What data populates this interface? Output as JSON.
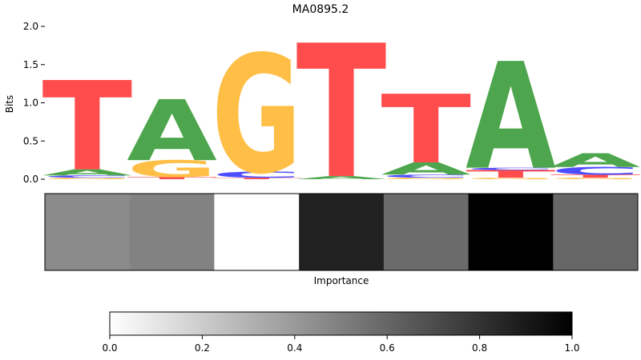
{
  "chart_data": [
    {
      "type": "sequence-logo",
      "title": "MA0895.2",
      "ylabel": "Bits",
      "ylim": [
        0,
        2.0
      ],
      "yticks": [
        "0.0",
        "0.5",
        "1.0",
        "1.5",
        "2.0"
      ],
      "colors": {
        "A": "#4da64d",
        "C": "#4d4dff",
        "G": "#ffbf47",
        "T": "#ff4d4d"
      },
      "positions": [
        {
          "stack": [
            {
              "base": "G",
              "height": 0.02
            },
            {
              "base": "C",
              "height": 0.03
            },
            {
              "base": "A",
              "height": 0.08
            },
            {
              "base": "T",
              "height": 1.17
            }
          ]
        },
        {
          "stack": [
            {
              "base": "T",
              "height": 0.03
            },
            {
              "base": "G",
              "height": 0.22
            },
            {
              "base": "A",
              "height": 0.8
            }
          ]
        },
        {
          "stack": [
            {
              "base": "T",
              "height": 0.02
            },
            {
              "base": "C",
              "height": 0.08
            },
            {
              "base": "G",
              "height": 1.55
            }
          ]
        },
        {
          "stack": [
            {
              "base": "A",
              "height": 0.04
            },
            {
              "base": "T",
              "height": 1.75
            }
          ]
        },
        {
          "stack": [
            {
              "base": "G",
              "height": 0.02
            },
            {
              "base": "C",
              "height": 0.04
            },
            {
              "base": "A",
              "height": 0.16
            },
            {
              "base": "T",
              "height": 0.9
            }
          ]
        },
        {
          "stack": [
            {
              "base": "G",
              "height": 0.02
            },
            {
              "base": "T",
              "height": 0.1
            },
            {
              "base": "C",
              "height": 0.03
            },
            {
              "base": "A",
              "height": 1.4
            }
          ]
        },
        {
          "stack": [
            {
              "base": "G",
              "height": 0.02
            },
            {
              "base": "T",
              "height": 0.04
            },
            {
              "base": "C",
              "height": 0.1
            },
            {
              "base": "A",
              "height": 0.18
            }
          ]
        }
      ]
    },
    {
      "type": "heatmap",
      "xlabel": "Importance",
      "values": [
        0.46,
        0.49,
        0.0,
        0.87,
        0.58,
        1.0,
        0.6
      ]
    },
    {
      "type": "colorbar",
      "range": [
        0.0,
        1.0
      ],
      "ticks": [
        "0.0",
        "0.2",
        "0.4",
        "0.6",
        "0.8",
        "1.0"
      ],
      "colormap": "white-to-black"
    }
  ]
}
